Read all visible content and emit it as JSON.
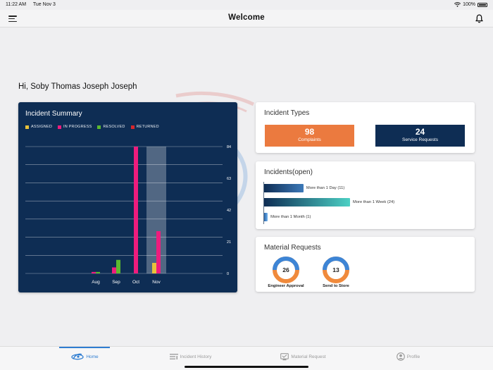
{
  "status_bar": {
    "time": "11:22 AM",
    "date": "Tue Nov 3",
    "battery": "100%"
  },
  "nav": {
    "title": "Welcome",
    "menu_icon": "hamburger-menu-icon",
    "bell_icon": "bell-icon"
  },
  "greeting": "Hi, Soby Thomas Joseph Joseph",
  "incident_summary": {
    "title": "Incident Summary"
  },
  "chart_data": {
    "type": "bar",
    "title": "Incident Summary",
    "categories": [
      "Aug",
      "Sep",
      "Oct",
      "Nov"
    ],
    "series": [
      {
        "name": "ASSIGNED",
        "color": "#e7c23a",
        "values": [
          0,
          0,
          0,
          7
        ]
      },
      {
        "name": "IN PROGRESS",
        "color": "#ee1c7d",
        "values": [
          1,
          4,
          84,
          28
        ]
      },
      {
        "name": "RESOLVED",
        "color": "#5cb82f",
        "values": [
          1,
          9,
          0,
          0
        ]
      },
      {
        "name": "RETURNED",
        "color": "#d8262b",
        "values": [
          0,
          0,
          0,
          0
        ]
      }
    ],
    "yticks": [
      "84",
      "63",
      "42",
      "21",
      "0"
    ],
    "ylim": [
      0,
      84
    ],
    "grid": true,
    "legend_position": "top-left",
    "highlighted_category": "Nov",
    "yaxis_side": "right"
  },
  "incident_types": {
    "title": "Incident Types",
    "complaints": {
      "count": "98",
      "label": "Complaints",
      "color": "#eb7a3f"
    },
    "service_requests": {
      "count": "24",
      "label": "Service Requests",
      "color": "#0e2d54"
    }
  },
  "incidents_open": {
    "title": "Incidents(open)",
    "items": [
      {
        "label": "More than 1 Day (11)",
        "value": 11
      },
      {
        "label": "More than 1 Week (24)",
        "value": 24
      },
      {
        "label": "More than 1 Month (1)",
        "value": 1
      }
    ]
  },
  "material_requests": {
    "title": "Material Requests",
    "items": [
      {
        "count": "26",
        "label": "Engineer Approval"
      },
      {
        "count": "13",
        "label": "Send to Store"
      }
    ]
  },
  "tabs": [
    {
      "label": "Home",
      "icon": "home-icon",
      "active": true
    },
    {
      "label": "Incident History",
      "icon": "incident-history-icon",
      "active": false
    },
    {
      "label": "Material Request",
      "icon": "material-request-icon",
      "active": false
    },
    {
      "label": "Profile",
      "icon": "profile-icon",
      "active": false
    }
  ]
}
